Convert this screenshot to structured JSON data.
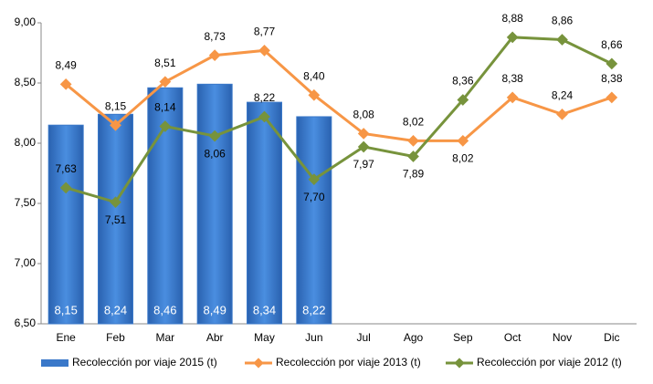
{
  "chart_data": {
    "type": "bar",
    "categories": [
      "Ene",
      "Feb",
      "Mar",
      "Abr",
      "May",
      "Jun",
      "Jul",
      "Ago",
      "Sep",
      "Oct",
      "Nov",
      "Dic"
    ],
    "series": [
      {
        "name": "Recolección por viaje 2015 (t)",
        "type": "bar",
        "color": "#3a78c9",
        "values": [
          8.15,
          8.24,
          8.46,
          8.49,
          8.34,
          8.22,
          null,
          null,
          null,
          null,
          null,
          null
        ],
        "value_labels": [
          "8,15",
          "8,24",
          "8,46",
          "8,49",
          "8,34",
          "8,22",
          null,
          null,
          null,
          null,
          null,
          null
        ]
      },
      {
        "name": "Recolección por viaje 2013 (t)",
        "type": "line",
        "color": "#f79646",
        "values": [
          8.49,
          8.15,
          8.51,
          8.73,
          8.77,
          8.4,
          8.08,
          8.02,
          8.02,
          8.38,
          8.24,
          8.38
        ],
        "value_labels": [
          "8,49",
          "8,15",
          "8,51",
          "8,73",
          "8,77",
          "8,40",
          "8,08",
          "8,02",
          "8,02",
          "8,38",
          "8,24",
          "8,38"
        ]
      },
      {
        "name": "Recolección por viaje 2012 (t)",
        "type": "line",
        "color": "#77933c",
        "values": [
          7.63,
          7.51,
          8.14,
          8.06,
          8.22,
          7.7,
          7.97,
          7.89,
          8.36,
          8.88,
          8.86,
          8.66
        ],
        "value_labels": [
          "7,63",
          "7,51",
          "8,14",
          "8,06",
          "8,22",
          "7,70",
          "7,97",
          "7,89",
          "8,36",
          "8,88",
          "8,86",
          "8,66"
        ]
      }
    ],
    "ylim": [
      6.5,
      9.0
    ],
    "yticks": [
      {
        "value": 6.5,
        "label": "6,50"
      },
      {
        "value": 7.0,
        "label": "7,00"
      },
      {
        "value": 7.5,
        "label": "7,50"
      },
      {
        "value": 8.0,
        "label": "8,00"
      },
      {
        "value": 8.5,
        "label": "8,50"
      },
      {
        "value": 9.0,
        "label": "9,00"
      }
    ],
    "legend": "bottom"
  }
}
